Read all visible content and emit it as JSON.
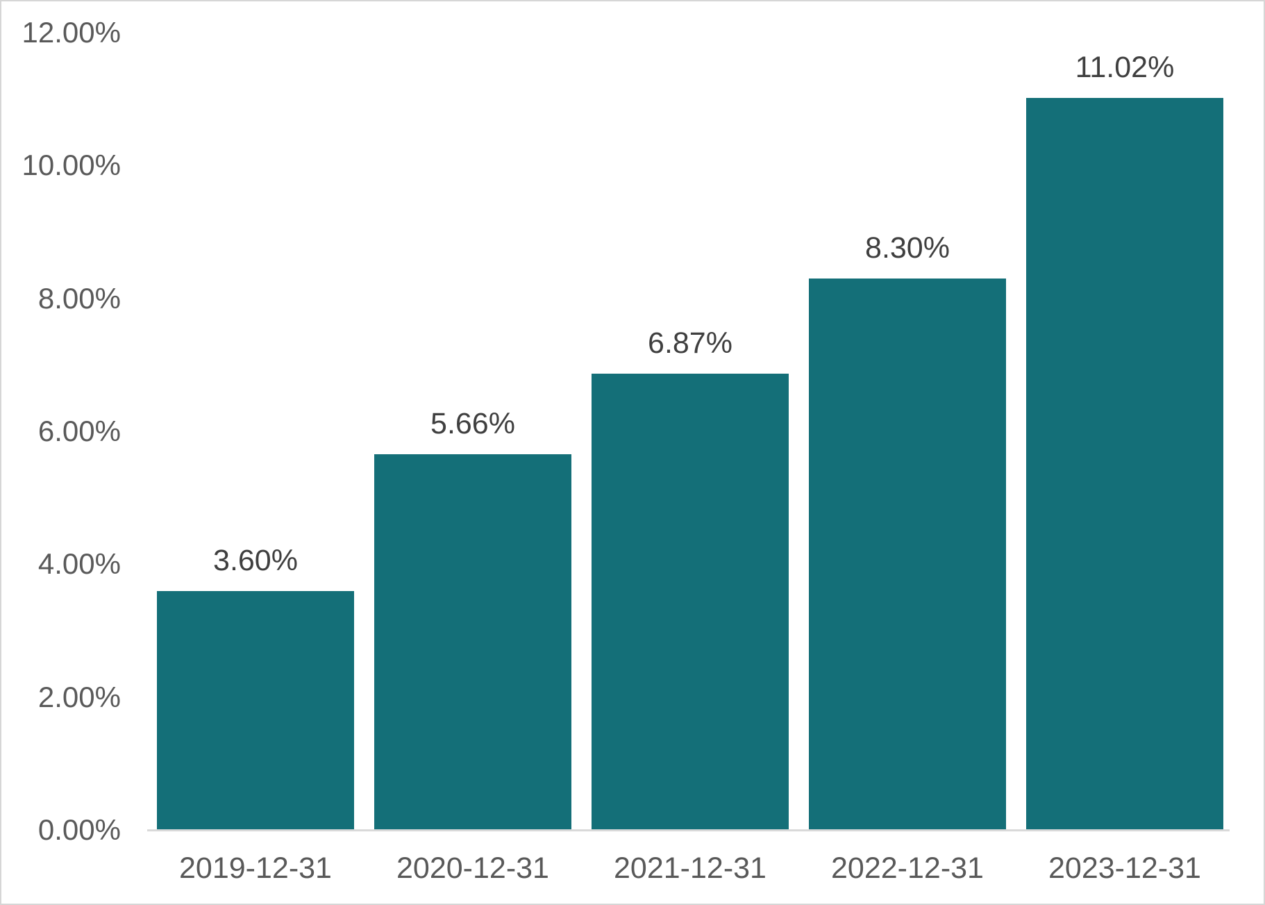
{
  "chart_data": {
    "type": "bar",
    "categories": [
      "2019-12-31",
      "2020-12-31",
      "2021-12-31",
      "2022-12-31",
      "2023-12-31"
    ],
    "values": [
      3.6,
      5.66,
      6.87,
      8.3,
      11.02
    ],
    "value_labels": [
      "3.60%",
      "5.66%",
      "6.87%",
      "8.30%",
      "11.02%"
    ],
    "title": "",
    "xlabel": "",
    "ylabel": "",
    "ylim": [
      0,
      12
    ],
    "y_tick_values": [
      0,
      2,
      4,
      6,
      8,
      10,
      12
    ],
    "y_tick_labels": [
      "0.00%",
      "2.00%",
      "4.00%",
      "6.00%",
      "8.00%",
      "10.00%",
      "12.00%"
    ],
    "grid": "off",
    "legend": "none",
    "colors": {
      "bar_fill": "#146f78",
      "axis_line": "#d9d9d9",
      "y_tick_text": "#595959",
      "x_tick_text": "#595959",
      "value_label_text": "#3f3f3f",
      "frame_border": "#d6d6d6",
      "background": "#ffffff"
    }
  }
}
